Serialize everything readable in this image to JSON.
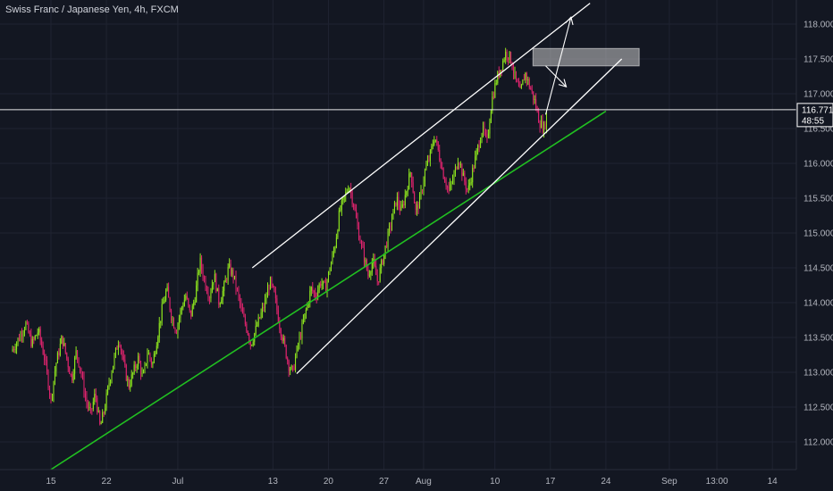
{
  "header": {
    "title": "Swiss Franc / Japanese Yen, 4h, FXCM"
  },
  "price_axis": {
    "current_price": "116.771",
    "countdown": "48:55"
  },
  "colors": {
    "background": "#131722",
    "grid": "#1f2331",
    "candle_up": "#8fe81e",
    "candle_down": "#e0246e",
    "support_line": "#21c021",
    "channel_lines": "#ffffff",
    "resistance_zone": "#c8c8c8"
  },
  "chart_data": {
    "type": "candlestick",
    "title": "Swiss Franc / Japanese Yen, 4h, FXCM",
    "ylim": [
      111.5,
      118.3
    ],
    "yticks": [
      112.0,
      112.5,
      113.0,
      113.5,
      114.0,
      114.5,
      115.0,
      115.5,
      116.0,
      116.5,
      117.0,
      117.5,
      118.0
    ],
    "ytick_labels": [
      "112.000",
      "112.500",
      "113.000",
      "113.500",
      "114.000",
      "114.500",
      "115.000",
      "115.500",
      "116.000",
      "116.500",
      "117.000",
      "117.500",
      "118.000"
    ],
    "xticks": [
      {
        "label": "15",
        "d": 0
      },
      {
        "label": "22",
        "d": 7
      },
      {
        "label": "Jul",
        "d": 16
      },
      {
        "label": "13",
        "d": 28
      },
      {
        "label": "20",
        "d": 35
      },
      {
        "label": "27",
        "d": 42
      },
      {
        "label": "Aug",
        "d": 47
      },
      {
        "label": "10",
        "d": 56
      },
      {
        "label": "17",
        "d": 63
      },
      {
        "label": "24",
        "d": 70
      },
      {
        "label": "Sep",
        "d": 78
      },
      {
        "label": "13:00",
        "d": 84
      },
      {
        "label": "14",
        "d": 91
      }
    ],
    "grid": true,
    "current_price": 116.771,
    "price_path": [
      [
        -5.0,
        113.3
      ],
      [
        -4.0,
        113.5
      ],
      [
        -3.2,
        113.7
      ],
      [
        -2.4,
        113.4
      ],
      [
        -1.6,
        113.6
      ],
      [
        -0.8,
        113.2
      ],
      [
        0.0,
        112.6
      ],
      [
        0.6,
        113.1
      ],
      [
        1.4,
        113.5
      ],
      [
        2.0,
        113.2
      ],
      [
        2.6,
        112.9
      ],
      [
        3.2,
        113.3
      ],
      [
        3.8,
        113.0
      ],
      [
        4.4,
        112.6
      ],
      [
        5.0,
        112.4
      ],
      [
        5.6,
        112.7
      ],
      [
        6.2,
        112.2
      ],
      [
        6.8,
        112.5
      ],
      [
        7.4,
        112.9
      ],
      [
        8.0,
        113.2
      ],
      [
        8.6,
        113.5
      ],
      [
        9.2,
        113.1
      ],
      [
        9.8,
        112.8
      ],
      [
        10.4,
        113.0
      ],
      [
        11.0,
        113.2
      ],
      [
        11.6,
        112.9
      ],
      [
        12.2,
        113.3
      ],
      [
        12.8,
        113.1
      ],
      [
        13.4,
        113.5
      ],
      [
        14.0,
        113.9
      ],
      [
        14.6,
        114.2
      ],
      [
        15.2,
        113.8
      ],
      [
        15.8,
        113.6
      ],
      [
        16.4,
        113.9
      ],
      [
        17.0,
        114.1
      ],
      [
        17.6,
        113.8
      ],
      [
        18.2,
        114.1
      ],
      [
        18.8,
        114.6
      ],
      [
        19.4,
        114.3
      ],
      [
        20.0,
        114.1
      ],
      [
        20.6,
        114.4
      ],
      [
        21.2,
        114.0
      ],
      [
        21.8,
        114.2
      ],
      [
        22.4,
        114.5
      ],
      [
        23.0,
        114.4
      ],
      [
        23.6,
        114.1
      ],
      [
        24.2,
        113.8
      ],
      [
        24.8,
        113.6
      ],
      [
        25.2,
        113.4
      ],
      [
        25.8,
        113.6
      ],
      [
        26.4,
        113.8
      ],
      [
        27.0,
        114.0
      ],
      [
        27.6,
        114.3
      ],
      [
        28.2,
        114.1
      ],
      [
        28.8,
        113.7
      ],
      [
        29.4,
        113.4
      ],
      [
        30.0,
        113.1
      ],
      [
        30.5,
        113.0
      ],
      [
        31.0,
        113.3
      ],
      [
        31.6,
        113.6
      ],
      [
        32.2,
        113.9
      ],
      [
        32.8,
        114.2
      ],
      [
        33.4,
        114.1
      ],
      [
        34.0,
        114.3
      ],
      [
        34.6,
        114.2
      ],
      [
        35.2,
        114.5
      ],
      [
        35.8,
        114.8
      ],
      [
        36.4,
        115.3
      ],
      [
        37.0,
        115.5
      ],
      [
        37.6,
        115.7
      ],
      [
        38.2,
        115.4
      ],
      [
        38.8,
        115.0
      ],
      [
        39.4,
        114.7
      ],
      [
        40.0,
        114.4
      ],
      [
        40.6,
        114.6
      ],
      [
        41.2,
        114.3
      ],
      [
        41.8,
        114.6
      ],
      [
        42.4,
        114.9
      ],
      [
        43.0,
        115.2
      ],
      [
        43.6,
        115.5
      ],
      [
        44.2,
        115.3
      ],
      [
        44.8,
        115.6
      ],
      [
        45.4,
        115.9
      ],
      [
        46.0,
        115.3
      ],
      [
        46.6,
        115.5
      ],
      [
        47.2,
        115.9
      ],
      [
        47.8,
        116.1
      ],
      [
        48.4,
        116.4
      ],
      [
        49.0,
        116.1
      ],
      [
        49.6,
        115.8
      ],
      [
        50.2,
        115.6
      ],
      [
        50.8,
        115.8
      ],
      [
        51.4,
        116.1
      ],
      [
        52.0,
        115.8
      ],
      [
        52.6,
        115.6
      ],
      [
        53.2,
        115.9
      ],
      [
        53.8,
        116.2
      ],
      [
        54.4,
        116.5
      ],
      [
        55.0,
        116.3
      ],
      [
        55.6,
        116.9
      ],
      [
        56.2,
        117.2
      ],
      [
        56.8,
        117.4
      ],
      [
        57.4,
        117.6
      ],
      [
        58.0,
        117.5
      ],
      [
        58.6,
        117.2
      ],
      [
        59.2,
        117.0
      ],
      [
        59.8,
        117.3
      ],
      [
        60.4,
        117.1
      ],
      [
        61.0,
        116.9
      ],
      [
        61.6,
        116.6
      ],
      [
        62.2,
        116.5
      ],
      [
        62.6,
        116.75
      ]
    ],
    "annotations": {
      "channel_upper": [
        [
          25.4,
          114.5
        ],
        [
          68.0,
          118.3
        ]
      ],
      "channel_lower": [
        [
          31.0,
          112.98
        ],
        [
          72.0,
          117.5
        ]
      ],
      "trendline": [
        [
          -1.4,
          111.5
        ],
        [
          70.0,
          116.75
        ]
      ],
      "resistance_zone": {
        "d0": 60.8,
        "d1": 74.2,
        "y0": 117.4,
        "y1": 117.65
      },
      "up_arrow": [
        [
          62.4,
          116.7
        ],
        [
          65.6,
          118.1
        ]
      ],
      "down_arrow": [
        [
          62.4,
          117.4
        ],
        [
          65.0,
          117.1
        ]
      ]
    }
  }
}
